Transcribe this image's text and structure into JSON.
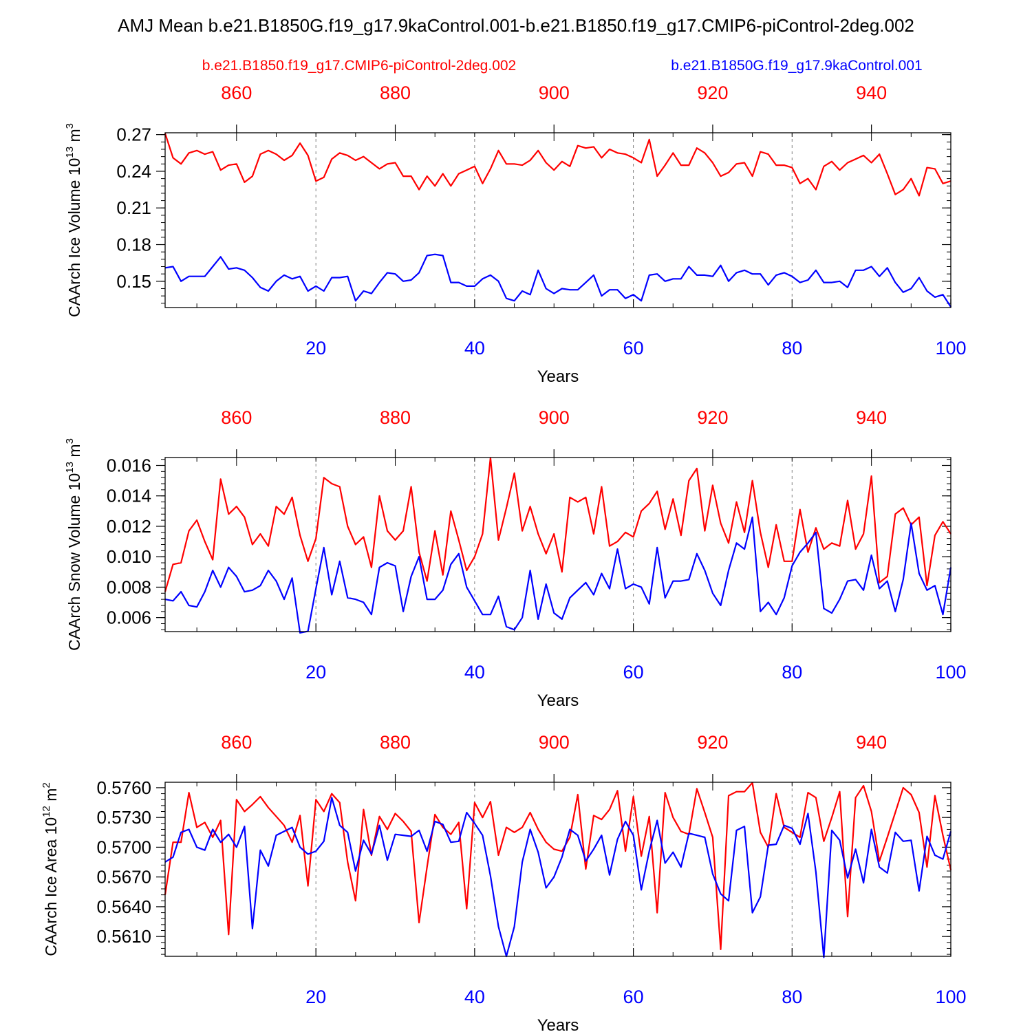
{
  "title": "AMJ Mean b.e21.B1850G.f19_g17.9kaControl.001-b.e21.B1850.f19_g17.CMIP6-piControl-2deg.002",
  "legend": {
    "red": "b.e21.B1850.f19_g17.CMIP6-piControl-2deg.002",
    "blue": "b.e21.B1850G.f19_g17.9kaControl.001"
  },
  "colors": {
    "red": "#ff0000",
    "blue": "#0000ff",
    "frame": "#000000",
    "grid": "#808080"
  },
  "chart_data": [
    {
      "type": "line",
      "ylabel": "CAArch Ice Volume",
      "yunit_base": "10",
      "yunit_exp": "13",
      "yunit_suffix": "m",
      "yunit_suffix_exp": "3",
      "xlabel": "Years",
      "xlim": [
        1,
        100
      ],
      "ylim": [
        0.1285,
        0.2715
      ],
      "yticks": [
        0.15,
        0.18,
        0.21,
        0.24,
        0.27
      ],
      "ytick_labels": [
        "0.15",
        "0.18",
        "0.21",
        "0.24",
        "0.27"
      ],
      "yminor_step": 0.006,
      "xticks": [
        20,
        40,
        60,
        80,
        100
      ],
      "xtick_labels": [
        "20",
        "40",
        "60",
        "80",
        "100"
      ],
      "top_ticks": [
        860,
        880,
        900,
        920,
        940
      ],
      "top_tick_labels": [
        "860",
        "880",
        "900",
        "920",
        "940"
      ],
      "top_offset": 850,
      "series": [
        {
          "name": "b.e21.B1850.f19_g17.CMIP6-piControl-2deg.002",
          "color": "red",
          "values": [
            0.271,
            0.251,
            0.246,
            0.255,
            0.257,
            0.254,
            0.256,
            0.241,
            0.245,
            0.246,
            0.231,
            0.236,
            0.254,
            0.257,
            0.254,
            0.249,
            0.253,
            0.263,
            0.253,
            0.232,
            0.235,
            0.25,
            0.255,
            0.253,
            0.249,
            0.252,
            0.247,
            0.242,
            0.246,
            0.247,
            0.236,
            0.236,
            0.225,
            0.236,
            0.228,
            0.238,
            0.228,
            0.238,
            0.241,
            0.244,
            0.23,
            0.242,
            0.257,
            0.246,
            0.246,
            0.245,
            0.249,
            0.257,
            0.247,
            0.241,
            0.248,
            0.244,
            0.261,
            0.259,
            0.26,
            0.251,
            0.258,
            0.255,
            0.254,
            0.251,
            0.247,
            0.266,
            0.236,
            0.245,
            0.255,
            0.245,
            0.245,
            0.259,
            0.255,
            0.247,
            0.236,
            0.239,
            0.246,
            0.247,
            0.236,
            0.256,
            0.254,
            0.245,
            0.245,
            0.243,
            0.23,
            0.234,
            0.225,
            0.244,
            0.248,
            0.241,
            0.247,
            0.25,
            0.253,
            0.247,
            0.254,
            0.238,
            0.221,
            0.225,
            0.234,
            0.22,
            0.243,
            0.242,
            0.23,
            0.232
          ]
        },
        {
          "name": "b.e21.B1850G.f19_g17.9kaControl.001",
          "color": "blue",
          "values": [
            0.161,
            0.162,
            0.15,
            0.154,
            0.154,
            0.154,
            0.162,
            0.17,
            0.16,
            0.161,
            0.159,
            0.153,
            0.145,
            0.142,
            0.15,
            0.155,
            0.152,
            0.154,
            0.142,
            0.146,
            0.142,
            0.153,
            0.153,
            0.154,
            0.134,
            0.142,
            0.14,
            0.149,
            0.157,
            0.156,
            0.15,
            0.151,
            0.157,
            0.171,
            0.172,
            0.171,
            0.149,
            0.149,
            0.146,
            0.146,
            0.152,
            0.155,
            0.15,
            0.136,
            0.134,
            0.142,
            0.139,
            0.159,
            0.144,
            0.14,
            0.144,
            0.143,
            0.143,
            0.149,
            0.155,
            0.138,
            0.143,
            0.143,
            0.136,
            0.139,
            0.134,
            0.155,
            0.156,
            0.15,
            0.152,
            0.152,
            0.162,
            0.155,
            0.155,
            0.154,
            0.163,
            0.15,
            0.157,
            0.159,
            0.156,
            0.156,
            0.147,
            0.155,
            0.157,
            0.154,
            0.149,
            0.151,
            0.159,
            0.149,
            0.149,
            0.15,
            0.145,
            0.159,
            0.159,
            0.162,
            0.154,
            0.161,
            0.149,
            0.141,
            0.144,
            0.153,
            0.142,
            0.137,
            0.139,
            0.129
          ]
        }
      ]
    },
    {
      "type": "line",
      "ylabel": "CAArch Snow Volume",
      "yunit_base": "10",
      "yunit_exp": "13",
      "yunit_suffix": "m",
      "yunit_suffix_exp": "3",
      "xlabel": "Years",
      "xlim": [
        1,
        100
      ],
      "ylim": [
        0.00508,
        0.01652
      ],
      "yticks": [
        0.006,
        0.008,
        0.01,
        0.012,
        0.014,
        0.016
      ],
      "ytick_labels": [
        "0.006",
        "0.008",
        "0.010",
        "0.012",
        "0.014",
        "0.016"
      ],
      "yminor_step": 0.0004,
      "xticks": [
        20,
        40,
        60,
        80,
        100
      ],
      "xtick_labels": [
        "20",
        "40",
        "60",
        "80",
        "100"
      ],
      "top_ticks": [
        860,
        880,
        900,
        920,
        940
      ],
      "top_tick_labels": [
        "860",
        "880",
        "900",
        "920",
        "940"
      ],
      "top_offset": 850,
      "series": [
        {
          "name": "b.e21.B1850.f19_g17.CMIP6-piControl-2deg.002",
          "color": "red",
          "values": [
            0.0077,
            0.0095,
            0.0096,
            0.0117,
            0.0124,
            0.011,
            0.0098,
            0.0151,
            0.0128,
            0.0133,
            0.0126,
            0.0108,
            0.0115,
            0.0107,
            0.0133,
            0.0128,
            0.0139,
            0.0114,
            0.0097,
            0.0112,
            0.0152,
            0.0148,
            0.0146,
            0.012,
            0.0108,
            0.0113,
            0.0093,
            0.014,
            0.0117,
            0.0111,
            0.0117,
            0.0146,
            0.0103,
            0.0084,
            0.0117,
            0.0088,
            0.013,
            0.0111,
            0.0091,
            0.01,
            0.0115,
            0.0165,
            0.0111,
            0.0132,
            0.0155,
            0.0117,
            0.0133,
            0.0115,
            0.0102,
            0.0115,
            0.009,
            0.0139,
            0.0136,
            0.0139,
            0.0115,
            0.0146,
            0.0107,
            0.011,
            0.0116,
            0.0113,
            0.013,
            0.0135,
            0.0143,
            0.0118,
            0.0138,
            0.0114,
            0.015,
            0.0158,
            0.0117,
            0.0147,
            0.0122,
            0.0109,
            0.0136,
            0.0116,
            0.015,
            0.0116,
            0.0093,
            0.0121,
            0.0097,
            0.0097,
            0.0131,
            0.0103,
            0.0119,
            0.0105,
            0.0109,
            0.0107,
            0.0137,
            0.0105,
            0.0115,
            0.0153,
            0.0083,
            0.0087,
            0.0128,
            0.0132,
            0.0121,
            0.0126,
            0.0081,
            0.0114,
            0.0123,
            0.0115
          ]
        },
        {
          "name": "b.e21.B1850G.f19_g17.9kaControl.001",
          "color": "blue",
          "values": [
            0.0072,
            0.0071,
            0.0077,
            0.0068,
            0.0067,
            0.0077,
            0.0091,
            0.008,
            0.0093,
            0.0087,
            0.0077,
            0.0078,
            0.0081,
            0.0091,
            0.0084,
            0.0072,
            0.0086,
            0.005,
            0.0051,
            0.0079,
            0.0106,
            0.0075,
            0.0097,
            0.0073,
            0.0072,
            0.007,
            0.0062,
            0.0093,
            0.0096,
            0.0094,
            0.0064,
            0.0087,
            0.01,
            0.0072,
            0.0072,
            0.0078,
            0.0095,
            0.0102,
            0.008,
            0.0071,
            0.0062,
            0.0062,
            0.0074,
            0.0054,
            0.0052,
            0.006,
            0.0091,
            0.0059,
            0.0082,
            0.0063,
            0.0059,
            0.0073,
            0.0078,
            0.0083,
            0.0075,
            0.0089,
            0.0079,
            0.0105,
            0.0079,
            0.0082,
            0.008,
            0.0069,
            0.0106,
            0.0073,
            0.0084,
            0.0084,
            0.0085,
            0.0102,
            0.0091,
            0.0076,
            0.0068,
            0.0091,
            0.0109,
            0.0105,
            0.0126,
            0.0064,
            0.007,
            0.0062,
            0.0073,
            0.0094,
            0.0103,
            0.0109,
            0.0116,
            0.0066,
            0.0063,
            0.0072,
            0.0084,
            0.0085,
            0.0078,
            0.0101,
            0.0079,
            0.0084,
            0.0064,
            0.0085,
            0.0122,
            0.0089,
            0.0078,
            0.0081,
            0.0062,
            0.0093
          ]
        }
      ]
    },
    {
      "type": "line",
      "ylabel": "CAArch Ice Area",
      "yunit_base": "10",
      "yunit_exp": "12",
      "yunit_suffix": "m",
      "yunit_suffix_exp": "2",
      "xlabel": "Years",
      "xlim": [
        1,
        100
      ],
      "ylim": [
        0.559,
        0.57655
      ],
      "yticks": [
        0.561,
        0.564,
        0.567,
        0.57,
        0.573,
        0.576
      ],
      "ytick_labels": [
        "0.5610",
        "0.5640",
        "0.5670",
        "0.5700",
        "0.5730",
        "0.5760"
      ],
      "yminor_step": 0.0006,
      "xticks": [
        20,
        40,
        60,
        80,
        100
      ],
      "xtick_labels": [
        "20",
        "40",
        "60",
        "80",
        "100"
      ],
      "top_ticks": [
        860,
        880,
        900,
        920,
        940
      ],
      "top_tick_labels": [
        "860",
        "880",
        "900",
        "920",
        "940"
      ],
      "top_offset": 850,
      "series": [
        {
          "name": "b.e21.B1850.f19_g17.CMIP6-piControl-2deg.002",
          "color": "red",
          "values": [
            0.5652,
            0.5705,
            0.5705,
            0.5755,
            0.572,
            0.5725,
            0.571,
            0.5727,
            0.5612,
            0.5748,
            0.5736,
            0.5743,
            0.5751,
            0.574,
            0.5731,
            0.5722,
            0.5705,
            0.5732,
            0.5661,
            0.5748,
            0.5736,
            0.5754,
            0.5745,
            0.5685,
            0.5646,
            0.5738,
            0.5692,
            0.5731,
            0.5718,
            0.5734,
            0.5726,
            0.5716,
            0.5624,
            0.568,
            0.5733,
            0.572,
            0.5713,
            0.5725,
            0.5638,
            0.5745,
            0.573,
            0.5746,
            0.5692,
            0.572,
            0.5715,
            0.572,
            0.5735,
            0.5718,
            0.5705,
            0.5698,
            0.5696,
            0.571,
            0.5753,
            0.5678,
            0.5732,
            0.5728,
            0.5738,
            0.5757,
            0.5696,
            0.5751,
            0.5691,
            0.5731,
            0.5634,
            0.5755,
            0.573,
            0.5716,
            0.5713,
            0.5759,
            0.5735,
            0.571,
            0.5597,
            0.5752,
            0.5756,
            0.5756,
            0.5765,
            0.5715,
            0.57,
            0.5754,
            0.572,
            0.5715,
            0.571,
            0.5755,
            0.575,
            0.5706,
            0.573,
            0.5756,
            0.563,
            0.575,
            0.5762,
            0.5736,
            0.5686,
            0.571,
            0.5735,
            0.576,
            0.5753,
            0.5735,
            0.568,
            0.5752,
            0.5712,
            0.5677
          ]
        },
        {
          "name": "b.e21.B1850G.f19_g17.9kaControl.001",
          "color": "blue",
          "values": [
            0.5685,
            0.569,
            0.5715,
            0.5718,
            0.57,
            0.5697,
            0.5718,
            0.5705,
            0.5713,
            0.57,
            0.5721,
            0.5618,
            0.5697,
            0.5681,
            0.5712,
            0.5716,
            0.572,
            0.57,
            0.5693,
            0.5696,
            0.5706,
            0.575,
            0.5722,
            0.5715,
            0.5676,
            0.5707,
            0.5693,
            0.5722,
            0.5687,
            0.5713,
            0.5712,
            0.5711,
            0.5717,
            0.5696,
            0.5726,
            0.5723,
            0.5705,
            0.5706,
            0.5735,
            0.5724,
            0.5712,
            0.5671,
            0.562,
            0.559,
            0.562,
            0.5685,
            0.5718,
            0.5695,
            0.5659,
            0.567,
            0.569,
            0.5718,
            0.5712,
            0.5686,
            0.5698,
            0.5712,
            0.5672,
            0.5708,
            0.5726,
            0.5712,
            0.5657,
            0.5696,
            0.5727,
            0.5684,
            0.5695,
            0.568,
            0.5714,
            0.5712,
            0.571,
            0.5673,
            0.5653,
            0.5646,
            0.5717,
            0.5721,
            0.5634,
            0.565,
            0.5702,
            0.5703,
            0.5722,
            0.5719,
            0.5703,
            0.5734,
            0.5675,
            0.5589,
            0.5717,
            0.5707,
            0.5669,
            0.5698,
            0.5664,
            0.5718,
            0.568,
            0.5674,
            0.5715,
            0.5706,
            0.5707,
            0.5656,
            0.5711,
            0.5692,
            0.5688,
            0.5716
          ]
        }
      ]
    }
  ]
}
